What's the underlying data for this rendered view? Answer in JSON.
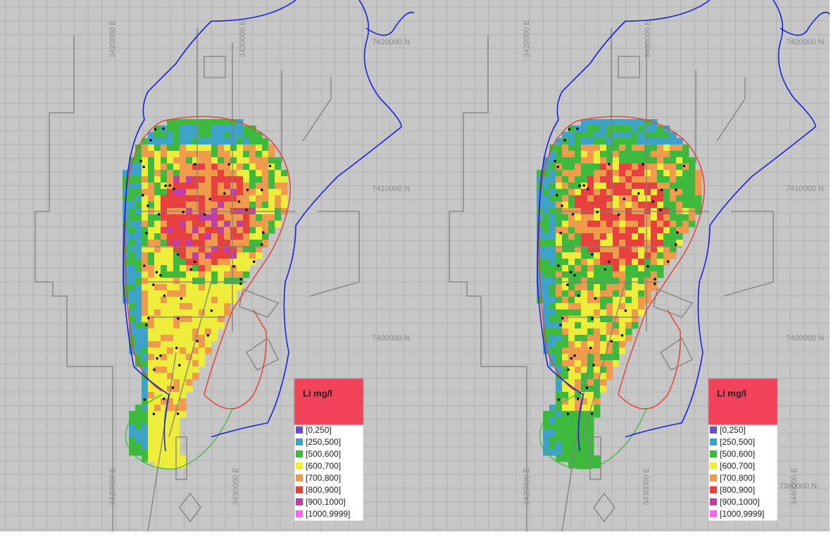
{
  "panels": [
    {
      "coordinate_labels": [
        "3420000 E",
        "3430000 E",
        "7420000 N",
        "7410000 N",
        "7400000 N",
        "3420000 E",
        "3430000 E"
      ],
      "legend": {
        "title": "Li mg/l",
        "items": [
          {
            "label": "[0,250]",
            "color": "#6a4fc9"
          },
          {
            "label": "[250,500]",
            "color": "#3fa2c8"
          },
          {
            "label": "[500,600]",
            "color": "#3dba3d"
          },
          {
            "label": "[600,700]",
            "color": "#eeee3a"
          },
          {
            "label": "[700,800]",
            "color": "#f09a4c"
          },
          {
            "label": "[800,900]",
            "color": "#e8403f"
          },
          {
            "label": "[900,1000]",
            "color": "#bf3fa6"
          },
          {
            "label": "[1000,9999]",
            "color": "#f46af0"
          }
        ]
      }
    },
    {
      "coordinate_labels": [
        "3420000 E",
        "3430000 E",
        "7420000 N",
        "7410000 N",
        "7400000 N",
        "7390000 N",
        "3420000 E",
        "3430000 E",
        "3440000 E"
      ],
      "legend": {
        "title": "Li mg/l",
        "items": [
          {
            "label": "[0,250]",
            "color": "#6a4fc9"
          },
          {
            "label": "[250,500]",
            "color": "#3fa2c8"
          },
          {
            "label": "[500,600]",
            "color": "#3dba3d"
          },
          {
            "label": "[600,700]",
            "color": "#eeee3a"
          },
          {
            "label": "[700,800]",
            "color": "#f09a4c"
          },
          {
            "label": "[800,900]",
            "color": "#e8403f"
          },
          {
            "label": "[900,1000]",
            "color": "#bf3fa6"
          },
          {
            "label": "[1000,9999]",
            "color": "#f46af0"
          }
        ]
      }
    }
  ]
}
